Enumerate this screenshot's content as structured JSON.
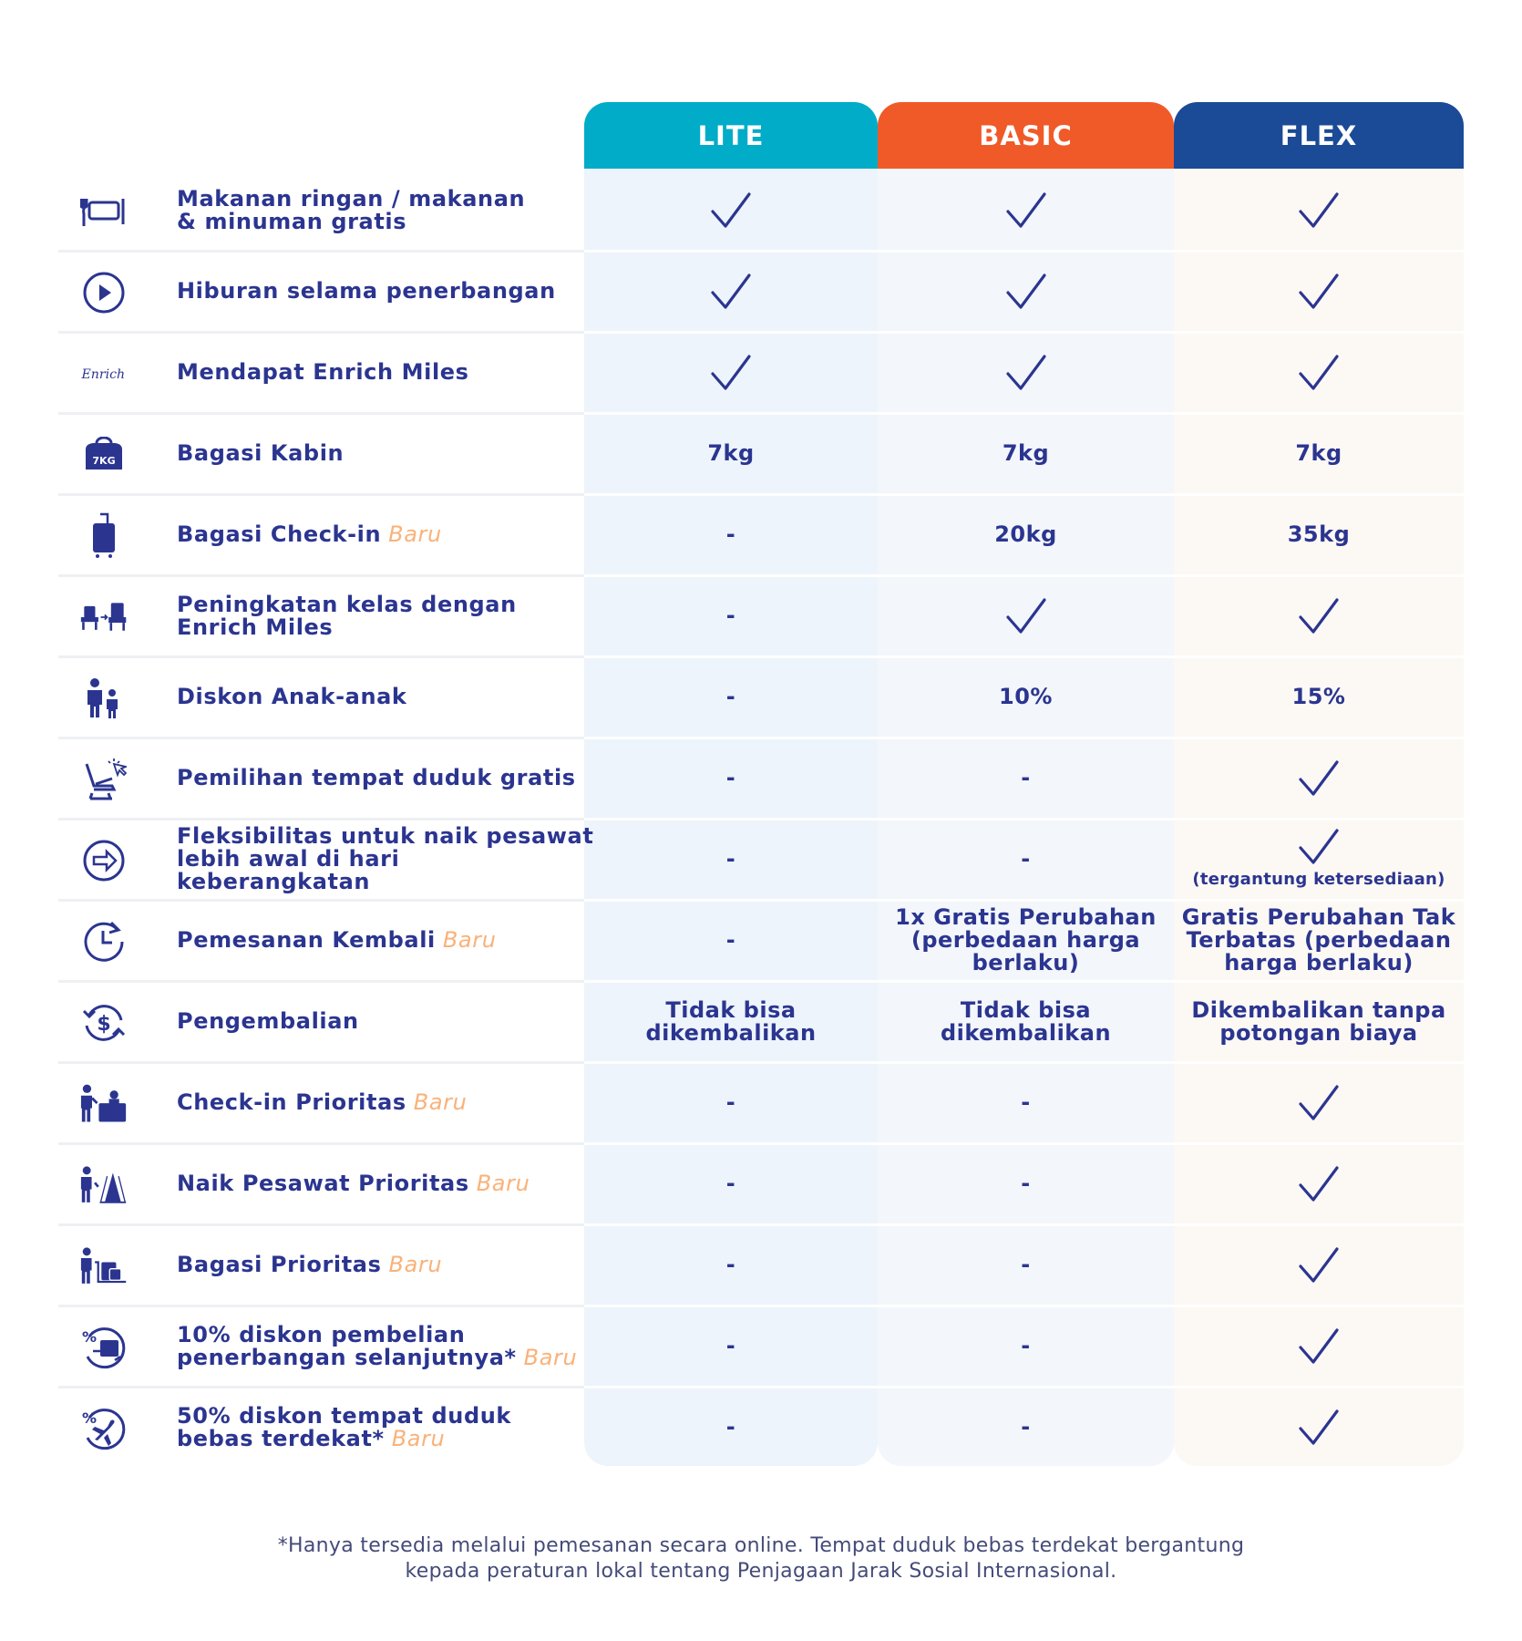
{
  "colors": {
    "lite": "#00acc8",
    "basic": "#f05a28",
    "flex": "#1b4a97",
    "text": "#2b3590",
    "baru": "#f9b27a"
  },
  "headers": [
    "LITE",
    "BASIC",
    "FLEX"
  ],
  "baru_label": "Baru",
  "rows": [
    {
      "icon": "meal-icon",
      "label": [
        "Makanan ringan / makanan",
        "& minuman gratis"
      ],
      "baru": false,
      "values": [
        "check",
        "check",
        "check"
      ]
    },
    {
      "icon": "play-icon",
      "label": [
        "Hiburan selama penerbangan"
      ],
      "baru": false,
      "values": [
        "check",
        "check",
        "check"
      ]
    },
    {
      "icon": "enrich-logo-icon",
      "icon_text": "Enrich",
      "label": [
        "Mendapat Enrich Miles"
      ],
      "baru": false,
      "values": [
        "check",
        "check",
        "check"
      ]
    },
    {
      "icon": "cabin-bag-icon",
      "icon_text": "7KG",
      "label": [
        "Bagasi Kabin"
      ],
      "baru": false,
      "values": [
        "7kg",
        "7kg",
        "7kg"
      ]
    },
    {
      "icon": "suitcase-icon",
      "label": [
        "Bagasi Check-in"
      ],
      "baru": true,
      "values": [
        "-",
        "20kg",
        "35kg"
      ]
    },
    {
      "icon": "seat-upgrade-icon",
      "label": [
        "Peningkatan kelas dengan",
        "Enrich Miles"
      ],
      "baru": false,
      "values": [
        "-",
        "check",
        "check"
      ]
    },
    {
      "icon": "family-icon",
      "label": [
        "Diskon Anak-anak"
      ],
      "baru": false,
      "values": [
        "-",
        "10%",
        "15%"
      ]
    },
    {
      "icon": "seat-select-icon",
      "label": [
        "Pemilihan tempat duduk gratis"
      ],
      "baru": false,
      "values": [
        "-",
        "-",
        "check"
      ]
    },
    {
      "icon": "flexible-arrow-icon",
      "label": [
        "Fleksibilitas untuk naik pesawat",
        "lebih awal di hari keberangkatan"
      ],
      "baru": false,
      "values": [
        "-",
        "-",
        "check"
      ],
      "flex_note": "(tergantung ketersediaan)"
    },
    {
      "icon": "rebook-clock-icon",
      "label": [
        "Pemesanan Kembali"
      ],
      "baru": true,
      "values": [
        "-",
        "1x Gratis Perubahan|(perbedaan harga|berlaku)",
        "Gratis Perubahan Tak|Terbatas (perbedaan|harga berlaku)"
      ]
    },
    {
      "icon": "refund-icon",
      "label": [
        "Pengembalian"
      ],
      "baru": false,
      "values": [
        "Tidak bisa|dikembalikan",
        "Tidak bisa|dikembalikan",
        "Dikembalikan tanpa|potongan biaya"
      ]
    },
    {
      "icon": "priority-checkin-icon",
      "label": [
        "Check-in Prioritas"
      ],
      "baru": true,
      "values": [
        "-",
        "-",
        "check"
      ]
    },
    {
      "icon": "priority-boarding-icon",
      "label": [
        "Naik Pesawat Prioritas"
      ],
      "baru": true,
      "values": [
        "-",
        "-",
        "check"
      ]
    },
    {
      "icon": "priority-baggage-icon",
      "label": [
        "Bagasi Prioritas"
      ],
      "baru": true,
      "values": [
        "-",
        "-",
        "check"
      ]
    },
    {
      "icon": "discount-flight-icon",
      "label": [
        "10% diskon pembelian",
        "penerbangan selanjutnya*"
      ],
      "baru": true,
      "values": [
        "-",
        "-",
        "check"
      ]
    },
    {
      "icon": "discount-seat-icon",
      "label": [
        "50% diskon tempat duduk",
        "bebas terdekat*"
      ],
      "baru": true,
      "values": [
        "-",
        "-",
        "check"
      ]
    }
  ],
  "footnote": [
    "*Hanya tersedia melalui pemesanan secara online. Tempat duduk bebas terdekat bergantung",
    "kepada peraturan lokal tentang Penjagaan Jarak Sosial Internasional."
  ]
}
